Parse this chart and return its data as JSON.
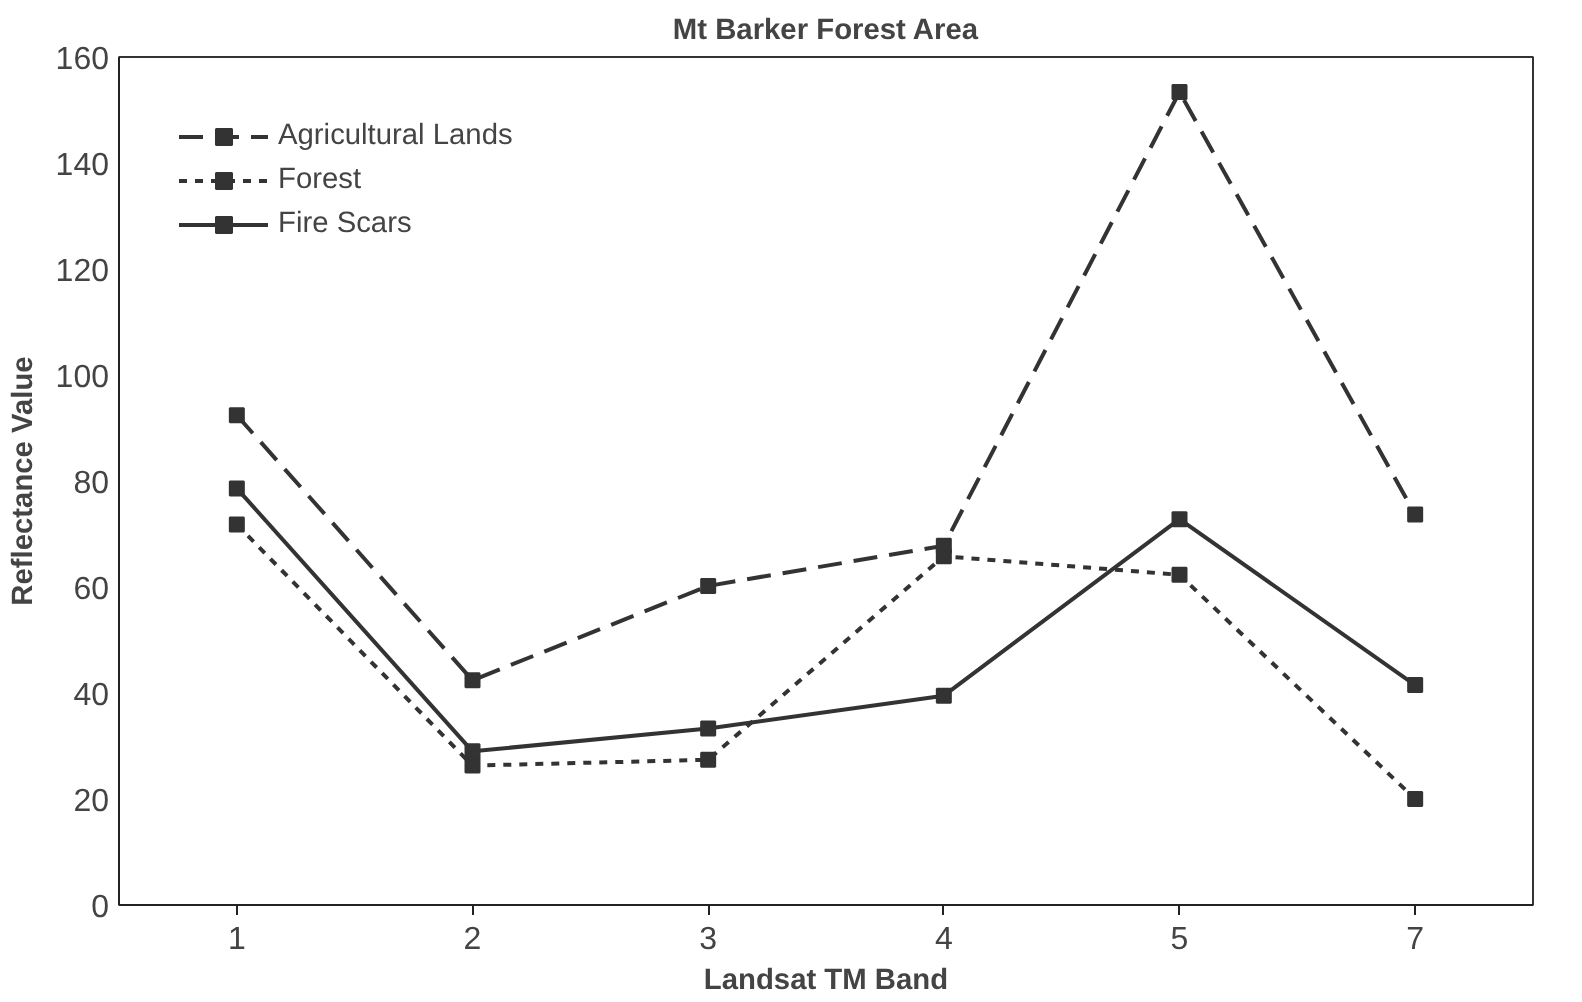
{
  "chart_data": {
    "type": "line",
    "title": "Mt Barker Forest Area",
    "xlabel": "Landsat TM Band",
    "ylabel": "Reflectance Value",
    "categories": [
      "1",
      "2",
      "3",
      "4",
      "5",
      "7"
    ],
    "series": [
      {
        "name": "Agricultural Lands",
        "color": "#333333",
        "line_style": "dashed",
        "values": [
          92.4,
          42.4,
          60.2,
          67.8,
          153.4,
          73.7
        ]
      },
      {
        "name": "Forest",
        "color": "#333333",
        "line_style": "dotted",
        "values": [
          71.8,
          26.3,
          27.4,
          65.8,
          62.3,
          20.0
        ]
      },
      {
        "name": "Fire Scars",
        "color": "#333333",
        "line_style": "solid",
        "values": [
          78.6,
          29.0,
          33.3,
          39.5,
          72.8,
          41.5
        ]
      }
    ],
    "ylim": [
      0,
      160
    ],
    "yticks": [
      0,
      20,
      40,
      60,
      80,
      100,
      120,
      140,
      160
    ],
    "grid": false,
    "legend": "top left",
    "marker": "square"
  }
}
